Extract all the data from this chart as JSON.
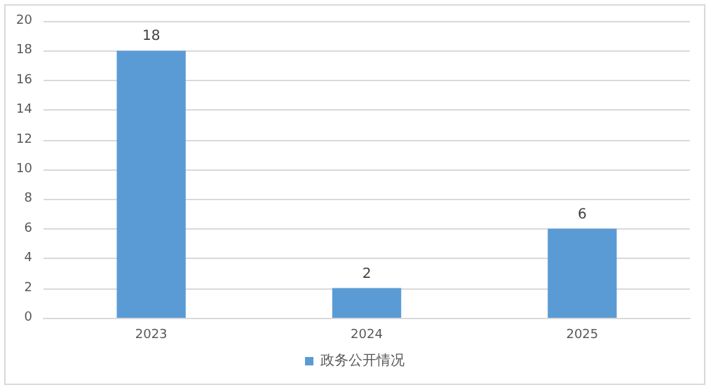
{
  "chart_data": {
    "type": "bar",
    "categories": [
      "2023",
      "2024",
      "2025"
    ],
    "series": [
      {
        "name": "政务公开情况",
        "color": "#5b9bd5",
        "values": [
          18,
          2,
          6
        ]
      }
    ],
    "ylim": [
      0,
      20
    ],
    "yticks": [
      0,
      2,
      4,
      6,
      8,
      10,
      12,
      14,
      16,
      18,
      20
    ],
    "grid": "y",
    "legend": "bottom",
    "data_labels": true
  }
}
